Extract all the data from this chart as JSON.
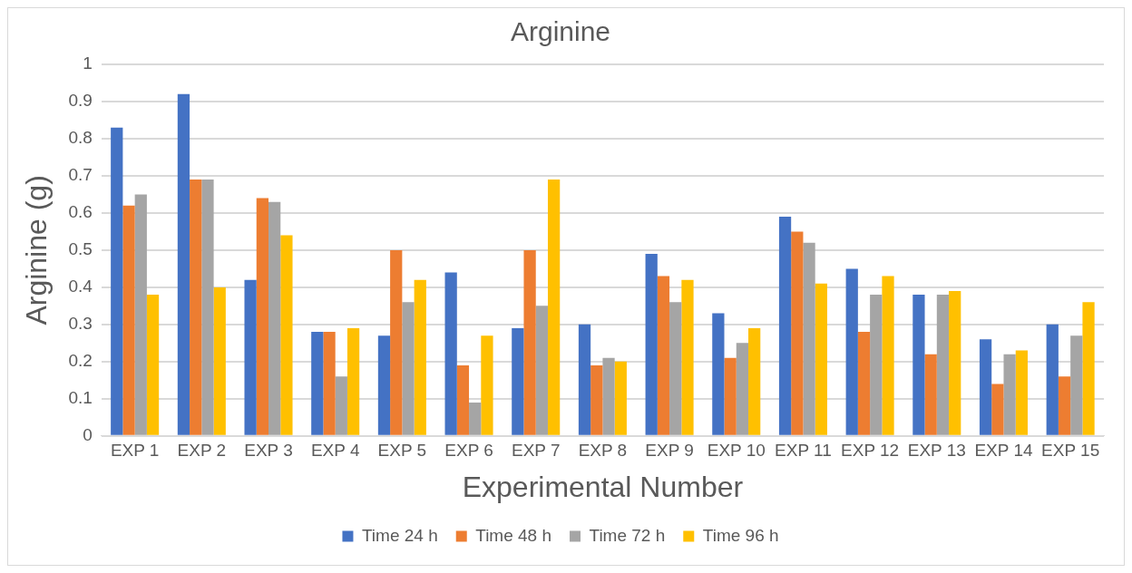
{
  "chart_data": {
    "type": "bar",
    "title": "Arginine",
    "xlabel": "Experimental Number",
    "ylabel": "Arginine (g)",
    "categories": [
      "EXP 1",
      "EXP 2",
      "EXP 3",
      "EXP 4",
      "EXP 5",
      "EXP 6",
      "EXP 7",
      "EXP 8",
      "EXP 9",
      "EXP 10",
      "EXP 11",
      "EXP 12",
      "EXP 13",
      "EXP 14",
      "EXP 15"
    ],
    "series": [
      {
        "name": "Time 24 h",
        "color": "#4472c4",
        "values": [
          0.83,
          0.92,
          0.42,
          0.28,
          0.27,
          0.44,
          0.29,
          0.3,
          0.49,
          0.33,
          0.59,
          0.45,
          0.38,
          0.26,
          0.3
        ]
      },
      {
        "name": "Time 48 h",
        "color": "#ed7d31",
        "values": [
          0.62,
          0.69,
          0.64,
          0.28,
          0.5,
          0.19,
          0.5,
          0.19,
          0.43,
          0.21,
          0.55,
          0.28,
          0.22,
          0.14,
          0.16
        ]
      },
      {
        "name": "Time 72 h",
        "color": "#a5a5a5",
        "values": [
          0.65,
          0.69,
          0.63,
          0.16,
          0.36,
          0.09,
          0.35,
          0.21,
          0.36,
          0.25,
          0.52,
          0.38,
          0.38,
          0.22,
          0.27
        ]
      },
      {
        "name": "Time 96 h",
        "color": "#ffc000",
        "values": [
          0.38,
          0.4,
          0.54,
          0.29,
          0.42,
          0.27,
          0.69,
          0.2,
          0.42,
          0.29,
          0.41,
          0.43,
          0.39,
          0.23,
          0.36
        ]
      }
    ],
    "ylim": [
      0,
      1
    ],
    "yticks": [
      0,
      0.1,
      0.2,
      0.3,
      0.4,
      0.5,
      0.6,
      0.7,
      0.8,
      0.9,
      1
    ],
    "grid": "y",
    "legend": "bottom"
  }
}
